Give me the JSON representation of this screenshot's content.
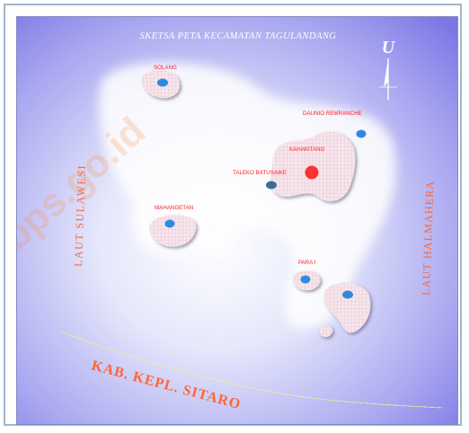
{
  "map": {
    "title": "SKETSA PETA KECAMATAN TAGULANDANG",
    "north_label": "U",
    "sea_west": "LAUT SULAWESI",
    "sea_east": "LAUT HALMAHERA",
    "regency_line_label": "KAB. KEPL. SITARO",
    "watermark": "bps.go.id",
    "colors": {
      "sea_outer": "#7b76e6",
      "sea_inner": "#ffffff",
      "island_fill": "#f3dfe6",
      "village_marker": "#2e8ae0",
      "capital_marker": "#ff3030",
      "label_red": "#ff2020",
      "boundary_line": "#e8e86a"
    },
    "places": [
      {
        "name": "SOLANG",
        "type": "village"
      },
      {
        "name": "DAUNIO REMRANCHE",
        "type": "village"
      },
      {
        "name": "KAHAKITANG",
        "type": "capital-label"
      },
      {
        "name": "TALEKO BATUSAIKE",
        "type": "village"
      },
      {
        "name": "MAHANGETAN",
        "type": "village"
      },
      {
        "name": "PARA I",
        "type": "village"
      }
    ]
  }
}
